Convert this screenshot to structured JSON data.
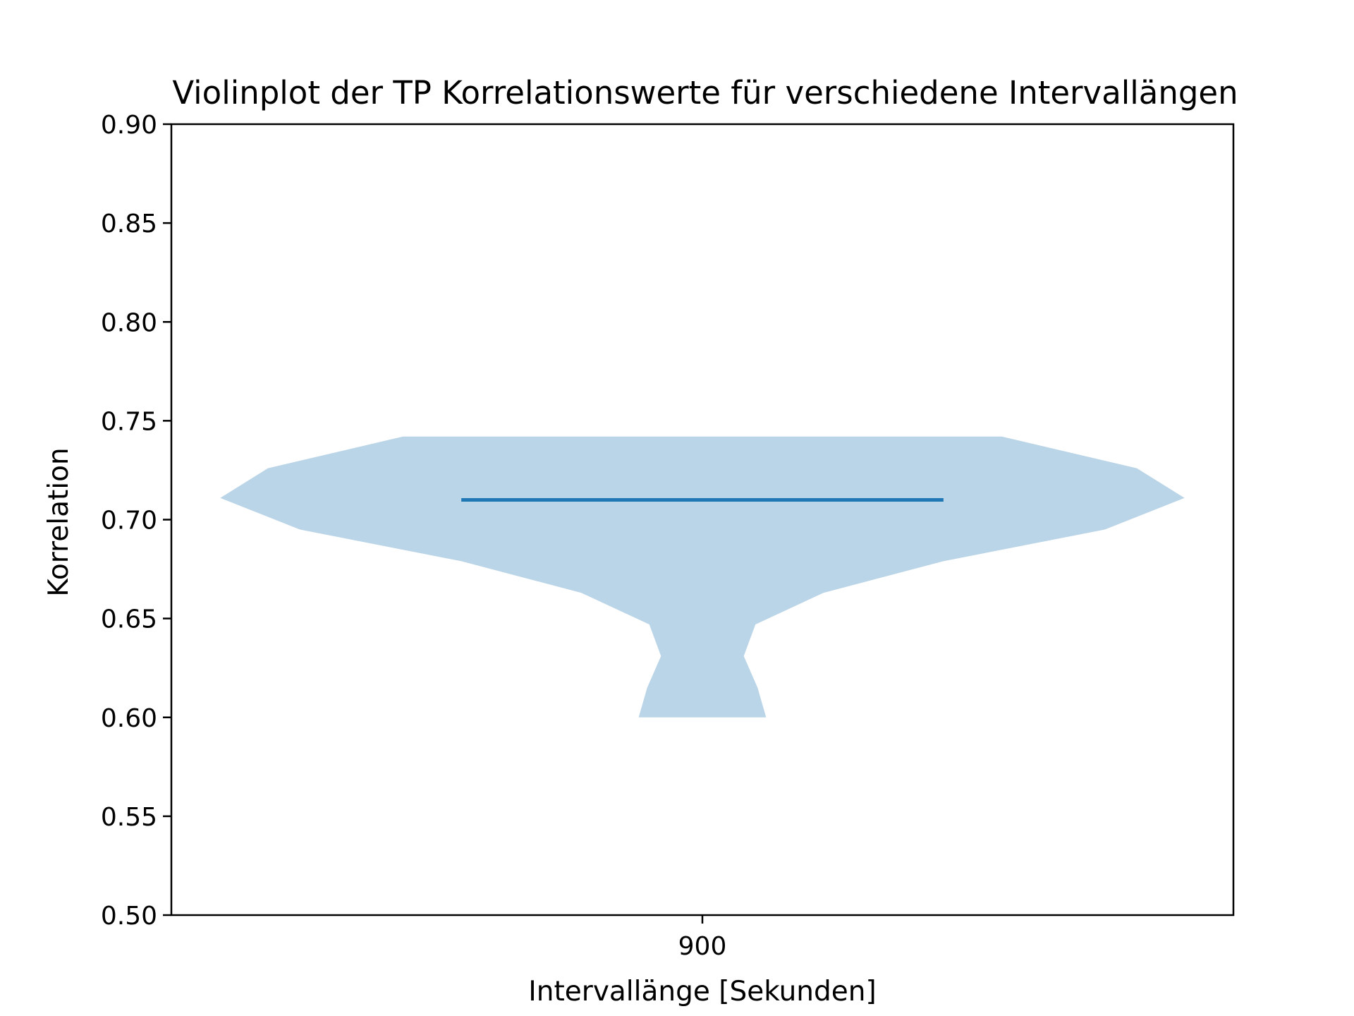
{
  "chart_data": {
    "type": "violin",
    "title": "Violinplot der TP Korrelationswerte für verschiedene Intervallängen",
    "xlabel": "Intervallänge [Sekunden]",
    "ylabel": "Korrelation",
    "categories": [
      "900"
    ],
    "ylim": [
      0.5,
      0.9
    ],
    "yticks": [
      "0.50",
      "0.55",
      "0.60",
      "0.65",
      "0.70",
      "0.75",
      "0.80",
      "0.85",
      "0.90"
    ],
    "grid": false,
    "fill_color": "#bbd5e8",
    "line_color": "#1f77b4",
    "violins": [
      {
        "category": "900",
        "density": [
          {
            "y": 0.6,
            "half_width": 0.06
          },
          {
            "y": 0.615,
            "half_width": 0.052
          },
          {
            "y": 0.631,
            "half_width": 0.039
          },
          {
            "y": 0.647,
            "half_width": 0.05
          },
          {
            "y": 0.663,
            "half_width": 0.114
          },
          {
            "y": 0.679,
            "half_width": 0.227
          },
          {
            "y": 0.695,
            "half_width": 0.379
          },
          {
            "y": 0.711,
            "half_width": 0.454
          },
          {
            "y": 0.726,
            "half_width": 0.409
          },
          {
            "y": 0.742,
            "half_width": 0.282
          }
        ],
        "median": 0.71,
        "median_half_width": 0.227
      }
    ]
  }
}
